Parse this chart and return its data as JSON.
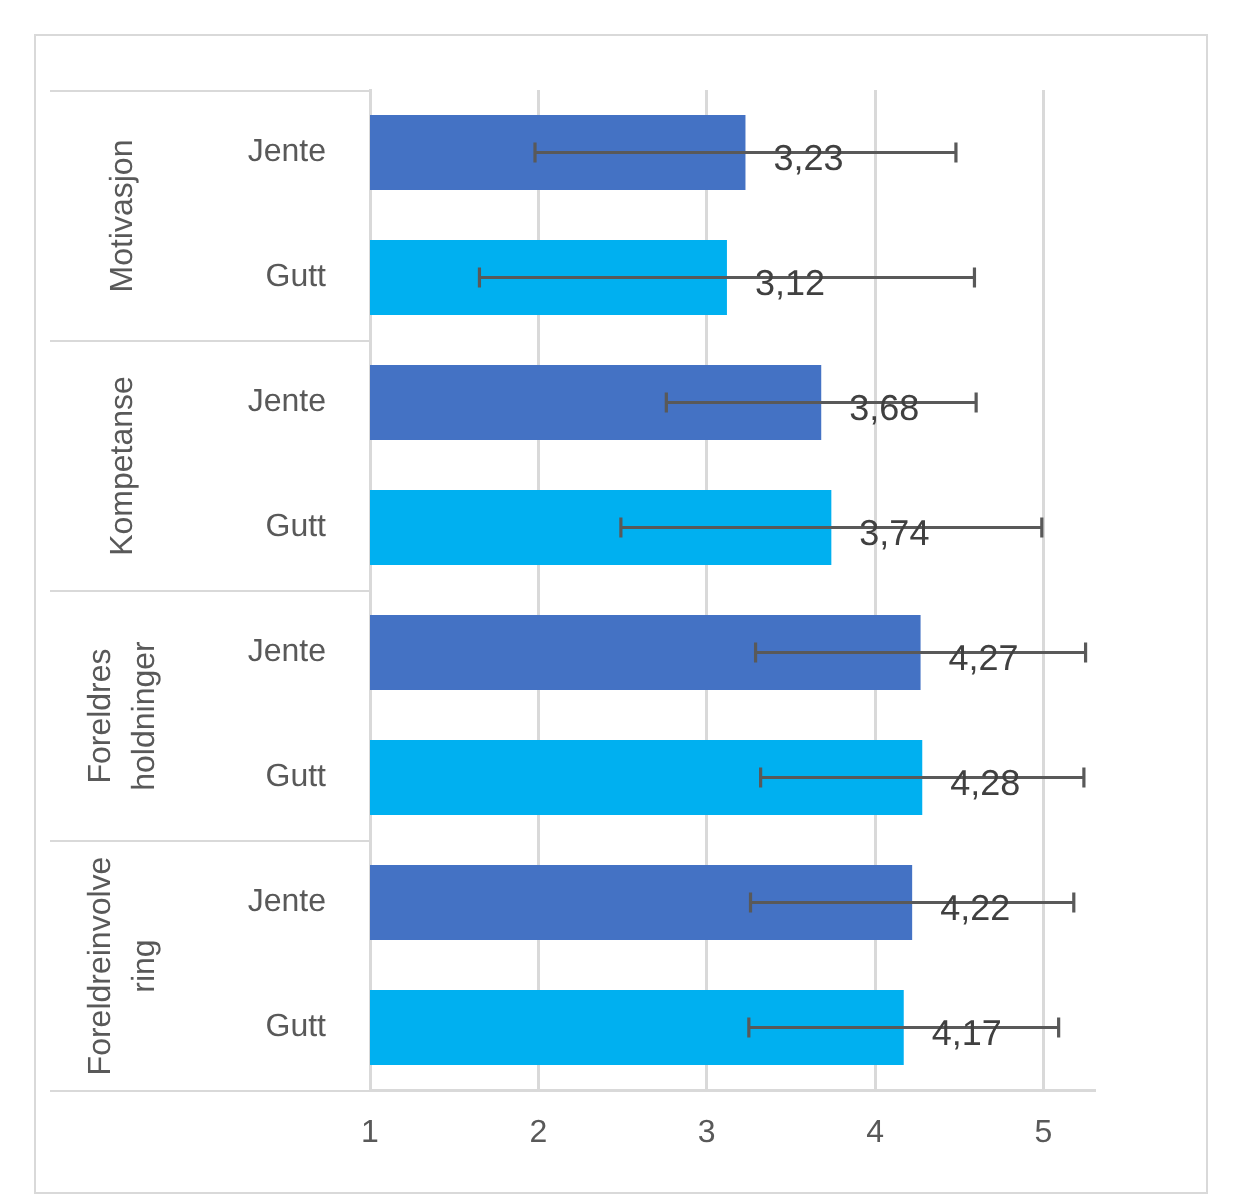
{
  "chart_data": {
    "type": "bar",
    "orientation": "horizontal",
    "categories": [
      "Jente",
      "Gutt",
      "Jente",
      "Gutt",
      "Jente",
      "Gutt",
      "Jente",
      "Gutt"
    ],
    "values": [
      3.23,
      3.12,
      3.68,
      3.74,
      4.27,
      4.28,
      4.22,
      4.17
    ],
    "colors": [
      "#4472c4",
      "#00b0f0",
      "#4472c4",
      "#00b0f0",
      "#4472c4",
      "#00b0f0",
      "#4472c4",
      "#00b0f0"
    ],
    "errors": [
      1.25,
      1.47,
      0.92,
      1.25,
      0.98,
      0.96,
      0.96,
      0.92
    ],
    "value_labels": [
      "3,23",
      "3,12",
      "3,68",
      "3,74",
      "4,27",
      "4,28",
      "4,22",
      "4,17"
    ],
    "annotations": [
      "Motivasjon",
      "Kompetanse",
      "Foreldres holdninger",
      "Foreldreinvolvering"
    ],
    "xlim": [
      1,
      5.3
    ],
    "xticks": [
      1,
      2,
      3,
      4,
      5
    ],
    "grid": "x"
  }
}
